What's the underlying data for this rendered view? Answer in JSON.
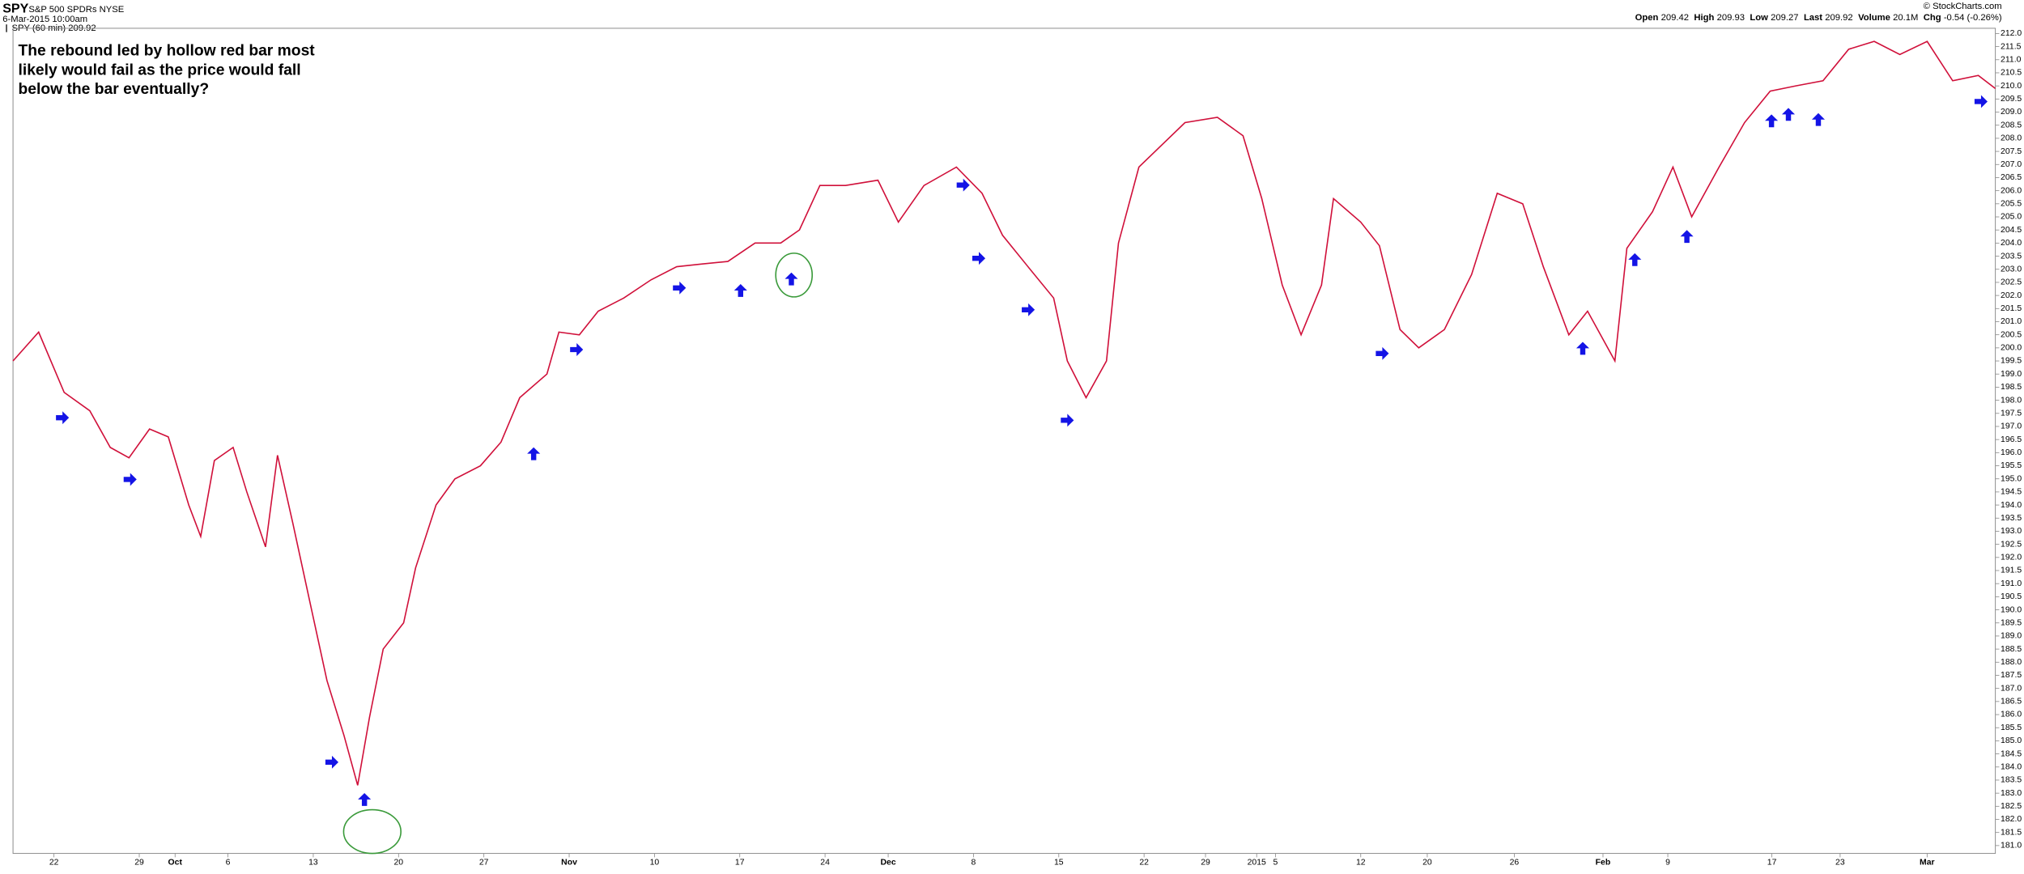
{
  "chart_data": {
    "type": "line",
    "title": "SPY",
    "subtitle": "S&P 500 SPDRs NYSE",
    "date": "6-Mar-2015 10:00am",
    "legend_label": "SPY (60 min) 209.92",
    "source": "© StockCharts.com",
    "quote": [
      {
        "label": "Open",
        "value": "209.42"
      },
      {
        "label": "High",
        "value": "209.93"
      },
      {
        "label": "Low",
        "value": "209.27"
      },
      {
        "label": "Last",
        "value": "209.92"
      },
      {
        "label": "Volume",
        "value": "20.1M"
      },
      {
        "label": "Chg",
        "value": "-0.54 (-0.26%)"
      }
    ],
    "annotation": [
      "The rebound led by hollow red bar most",
      "likely would fail as the price would fall",
      "below the bar eventually?"
    ],
    "series": [
      {
        "name": "SPY",
        "color": "#d0103a",
        "x": [
          -2.4,
          -0.9,
          0.6,
          2.1,
          3.3,
          4.4,
          5.6,
          6.7,
          7.9,
          8.6,
          9.4,
          10.5,
          11.3,
          12.4,
          13.1,
          14.0,
          15.1,
          16.0,
          17.0,
          17.8,
          18.5,
          19.3,
          20.5,
          21.2,
          22.4,
          23.5,
          25.0,
          26.2,
          27.3,
          28.9,
          29.6,
          30.8,
          31.9,
          33.4,
          35.0,
          36.5,
          38.0,
          39.5,
          41.1,
          42.6,
          43.7,
          44.9,
          46.4,
          48.3,
          49.5,
          51.0,
          52.9,
          54.4,
          55.6,
          57.1,
          58.6,
          59.4,
          60.5,
          61.7,
          62.4,
          63.6,
          64.7,
          66.3,
          68.2,
          69.7,
          70.8,
          72.0,
          73.1,
          74.3,
          75.0,
          76.6,
          77.7,
          78.9,
          80.0,
          81.5,
          83.1,
          84.6,
          86.1,
          87.3,
          88.8,
          89.9,
          91.5,
          92.2,
          93.7,
          94.9,
          96.0,
          97.6,
          99.1,
          100.6,
          102.1,
          103.7,
          105.2,
          106.7,
          108.2,
          109.8,
          111.3,
          112.8,
          113.8
        ],
        "values": [
          199.5,
          200.6,
          198.3,
          197.6,
          196.2,
          195.8,
          196.9,
          196.6,
          194.0,
          192.8,
          195.7,
          196.2,
          194.5,
          192.4,
          195.9,
          193.3,
          190.0,
          187.3,
          185.2,
          183.3,
          185.9,
          188.5,
          189.5,
          191.6,
          194.0,
          195.0,
          195.5,
          196.4,
          198.1,
          199.0,
          200.6,
          200.5,
          201.4,
          201.9,
          202.6,
          203.1,
          203.2,
          203.3,
          204.0,
          204.0,
          204.5,
          206.2,
          206.2,
          206.4,
          204.8,
          206.2,
          206.9,
          205.9,
          204.3,
          203.1,
          201.9,
          199.5,
          198.1,
          199.5,
          204.0,
          206.9,
          207.6,
          208.6,
          208.8,
          208.1,
          205.7,
          202.4,
          200.5,
          202.4,
          205.7,
          204.8,
          203.9,
          200.7,
          200.0,
          200.7,
          202.8,
          205.9,
          205.5,
          203.1,
          200.5,
          201.4,
          199.5,
          203.8,
          205.2,
          206.9,
          205.0,
          206.9,
          208.6,
          209.8,
          210.0,
          210.2,
          211.4,
          211.7,
          211.2,
          211.7,
          210.2,
          210.4,
          209.9
        ]
      }
    ],
    "xlim": [
      -2.4,
      113.8
    ],
    "xticks": [
      {
        "value": 0,
        "label": "22"
      },
      {
        "value": 5.0,
        "label": "29"
      },
      {
        "value": 7.1,
        "label": "Oct"
      },
      {
        "value": 10.2,
        "label": "6"
      },
      {
        "value": 15.2,
        "label": "13"
      },
      {
        "value": 20.2,
        "label": "20"
      },
      {
        "value": 25.2,
        "label": "27"
      },
      {
        "value": 30.2,
        "label": "Nov"
      },
      {
        "value": 35.2,
        "label": "10"
      },
      {
        "value": 40.2,
        "label": "17"
      },
      {
        "value": 45.2,
        "label": "24"
      },
      {
        "value": 48.9,
        "label": "Dec"
      },
      {
        "value": 53.9,
        "label": "8"
      },
      {
        "value": 58.9,
        "label": "15"
      },
      {
        "value": 63.9,
        "label": "22"
      },
      {
        "value": 67.5,
        "label": "29"
      },
      {
        "value": 70.5,
        "label": "2015"
      },
      {
        "value": 71.6,
        "label": "5"
      },
      {
        "value": 76.6,
        "label": "12"
      },
      {
        "value": 80.5,
        "label": "20"
      },
      {
        "value": 85.6,
        "label": "26"
      },
      {
        "value": 90.8,
        "label": "Feb"
      },
      {
        "value": 94.6,
        "label": "9"
      },
      {
        "value": 100.7,
        "label": "17"
      },
      {
        "value": 104.7,
        "label": "23"
      },
      {
        "value": 109.8,
        "label": "Mar"
      }
    ],
    "ylim": [
      180.7,
      212.2
    ],
    "yticks": [
      {
        "value": 181,
        "label": "181.0"
      },
      181.5,
      {
        "value": 182,
        "label": "182.0"
      },
      182.5,
      {
        "value": 183,
        "label": "183.0"
      },
      183.5,
      {
        "value": 184,
        "label": "184.0"
      },
      184.5,
      {
        "value": 185,
        "label": "185.0"
      },
      185.5,
      {
        "value": 186,
        "label": "186.0"
      },
      186.5,
      {
        "value": 187,
        "label": "187.0"
      },
      187.5,
      {
        "value": 188,
        "label": "188.0"
      },
      188.5,
      {
        "value": 189,
        "label": "189.0"
      },
      189.5,
      {
        "value": 190,
        "label": "190.0"
      },
      190.5,
      {
        "value": 191,
        "label": "191.0"
      },
      191.5,
      {
        "value": 192,
        "label": "192.0"
      },
      192.5,
      {
        "value": 193,
        "label": "193.0"
      },
      193.5,
      {
        "value": 194,
        "label": "194.0"
      },
      194.5,
      {
        "value": 195,
        "label": "195.0"
      },
      195.5,
      {
        "value": 196,
        "label": "196.0"
      },
      196.5,
      {
        "value": 197,
        "label": "197.0"
      },
      197.5,
      {
        "value": 198,
        "label": "198.0"
      },
      198.5,
      {
        "value": 199,
        "label": "199.0"
      },
      199.5,
      {
        "value": 200,
        "label": "200.0"
      },
      200.5,
      {
        "value": 201,
        "label": "201.0"
      },
      201.5,
      {
        "value": 202,
        "label": "202.0"
      },
      202.5,
      {
        "value": 203,
        "label": "203.0"
      },
      203.5,
      {
        "value": 204,
        "label": "204.0"
      },
      204.5,
      {
        "value": 205,
        "label": "205.0"
      },
      205.5,
      {
        "value": 206,
        "label": "206.0"
      },
      206.5,
      {
        "value": 207,
        "label": "207.0"
      },
      207.5,
      {
        "value": 208,
        "label": "208.0"
      },
      208.5,
      {
        "value": 209,
        "label": "209.0"
      },
      209.5,
      {
        "value": 210,
        "label": "210.0"
      },
      210.5,
      {
        "value": 211,
        "label": "211.0"
      },
      211.5,
      {
        "value": 212,
        "label": "212.0"
      }
    ],
    "grid": false
  }
}
